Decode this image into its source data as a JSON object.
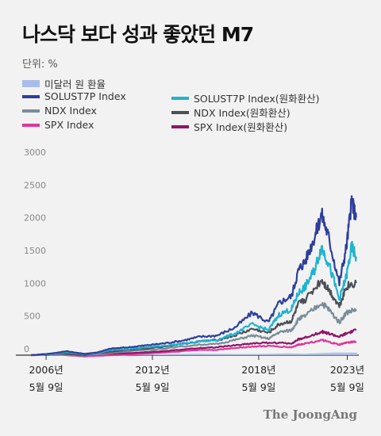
{
  "title": "나스닥 보다 성과 좋았던 M7",
  "unit_label": "단위: %",
  "source": "The JoongAng",
  "chart_data": {
    "type": "line",
    "title": "나스닥 보다 성과 좋았던 M7",
    "ylabel": "",
    "ylim": [
      0,
      3000
    ],
    "xlim": [
      2005.0,
      2024.0
    ],
    "grid": false,
    "legend_position": "top-left",
    "y_ticks": [
      0,
      500,
      1000,
      1500,
      2000,
      2500,
      3000
    ],
    "x_ticks": [
      {
        "x": 2006.35,
        "label": [
          "2006년",
          "5월 9일"
        ]
      },
      {
        "x": 2012.35,
        "label": [
          "2012년",
          "5월 9일"
        ]
      },
      {
        "x": 2018.35,
        "label": [
          "2018년",
          "5월 9일"
        ]
      },
      {
        "x": 2023.35,
        "label": [
          "2023년",
          "5월 9일"
        ]
      }
    ],
    "series": [
      {
        "name": "미달러 원 환율",
        "kind": "area",
        "color": "#a9bde8",
        "x": [
          2005.5,
          2008,
          2009,
          2012,
          2015,
          2018,
          2020,
          2021,
          2022.5,
          2023.9
        ],
        "values": [
          0,
          0,
          20,
          10,
          20,
          15,
          25,
          20,
          40,
          40
        ]
      },
      {
        "name": "SOLUST7P Index",
        "color": "#2d3e9c",
        "x": [
          2005.5,
          2006.5,
          2007.5,
          2008.5,
          2009.2,
          2010,
          2011,
          2012,
          2013,
          2014,
          2015,
          2016,
          2017,
          2018,
          2018.9,
          2019.5,
          2020.2,
          2020.6,
          2021,
          2021.5,
          2021.9,
          2022.3,
          2022.9,
          2023.3,
          2023.6,
          2023.85
        ],
        "values": [
          0,
          20,
          60,
          20,
          40,
          100,
          120,
          150,
          180,
          220,
          280,
          300,
          420,
          650,
          500,
          800,
          900,
          1300,
          1450,
          1800,
          2150,
          1800,
          1100,
          1650,
          2350,
          2100
        ]
      },
      {
        "name": "SOLUST7P Index(원화환산)",
        "color": "#1fb3d1",
        "x": [
          2005.5,
          2006.5,
          2007.5,
          2008.5,
          2009.2,
          2010,
          2011,
          2012,
          2013,
          2014,
          2015,
          2016,
          2017,
          2018,
          2018.9,
          2019.5,
          2020.2,
          2020.6,
          2021,
          2021.5,
          2021.9,
          2022.3,
          2022.9,
          2023.3,
          2023.6,
          2023.85
        ],
        "values": [
          0,
          15,
          45,
          15,
          30,
          80,
          95,
          120,
          145,
          170,
          210,
          230,
          330,
          470,
          380,
          620,
          700,
          950,
          1050,
          1300,
          1650,
          1400,
          850,
          1200,
          1650,
          1500
        ]
      },
      {
        "name": "NDX Index",
        "color": "#7a8c9a",
        "x": [
          2005.5,
          2007,
          2008.5,
          2009.2,
          2011,
          2013,
          2015,
          2016,
          2017,
          2018,
          2018.9,
          2019.5,
          2020.2,
          2020.6,
          2021,
          2021.9,
          2022.3,
          2022.9,
          2023.3,
          2023.85
        ],
        "values": [
          0,
          20,
          -10,
          15,
          60,
          100,
          160,
          170,
          230,
          300,
          250,
          350,
          380,
          550,
          600,
          800,
          700,
          500,
          650,
          700
        ]
      },
      {
        "name": "NDX Index(원화환산)",
        "color": "#4b4f57",
        "x": [
          2005.5,
          2007,
          2008.5,
          2009.2,
          2011,
          2013,
          2015,
          2016,
          2017,
          2018,
          2018.9,
          2019.5,
          2020.2,
          2020.6,
          2021,
          2021.9,
          2022.3,
          2022.9,
          2023.3,
          2023.85
        ],
        "values": [
          0,
          30,
          0,
          30,
          80,
          130,
          210,
          230,
          300,
          400,
          340,
          470,
          520,
          780,
          850,
          1150,
          1000,
          750,
          1050,
          1100
        ]
      },
      {
        "name": "SPX Index",
        "color": "#e0369a",
        "x": [
          2005.5,
          2007,
          2008.5,
          2009.2,
          2011,
          2013,
          2015,
          2016,
          2017,
          2018,
          2019,
          2020.2,
          2020.6,
          2021,
          2021.9,
          2022.3,
          2022.9,
          2023.3,
          2023.85
        ],
        "values": [
          0,
          10,
          -20,
          -10,
          10,
          40,
          80,
          80,
          110,
          130,
          140,
          120,
          160,
          180,
          230,
          200,
          160,
          190,
          210
        ]
      },
      {
        "name": "SPX Index(원화환산)",
        "color": "#8e1566",
        "x": [
          2005.5,
          2007,
          2008.5,
          2009.2,
          2011,
          2013,
          2015,
          2016,
          2017,
          2018,
          2019,
          2020.2,
          2020.6,
          2021,
          2021.9,
          2022.3,
          2022.9,
          2023.3,
          2023.85
        ],
        "values": [
          0,
          15,
          10,
          20,
          30,
          60,
          110,
          120,
          150,
          180,
          190,
          180,
          240,
          270,
          360,
          330,
          280,
          330,
          380
        ]
      }
    ]
  }
}
